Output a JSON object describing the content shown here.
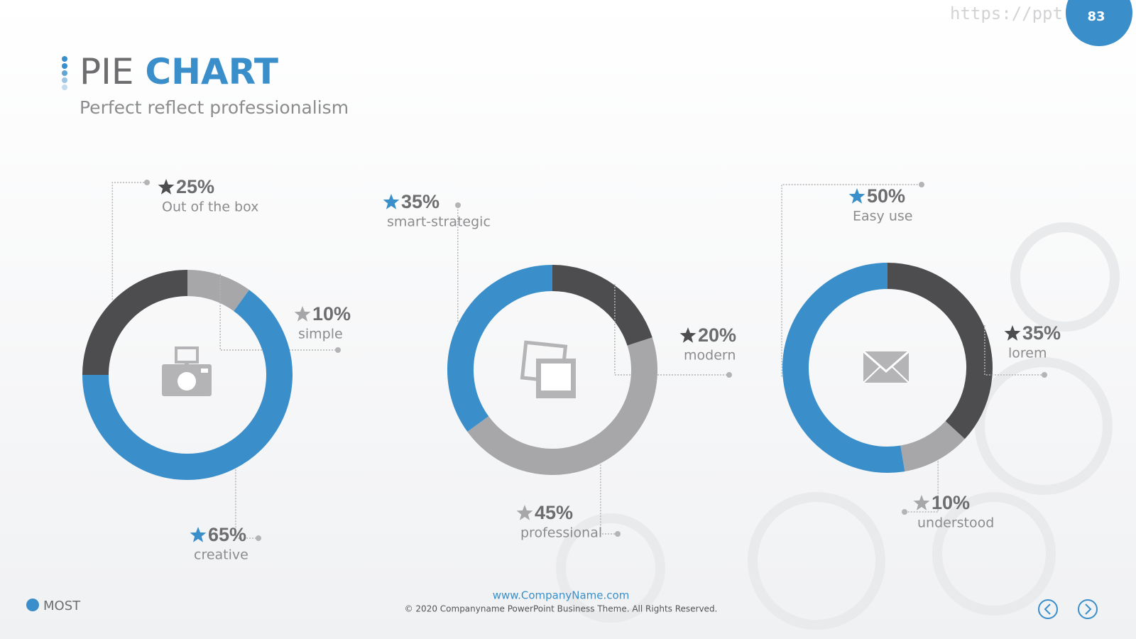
{
  "header": {
    "title_light": "PIE",
    "title_bold": "CHART",
    "subtitle": "Perfect reflect professionalism",
    "watermark": "https://ppt.pkl",
    "page_number": "83"
  },
  "chart_data": [
    {
      "type": "pie",
      "donut": true,
      "categories": [
        "simple",
        "creative",
        "Out of the box"
      ],
      "values": [
        10,
        65,
        25
      ],
      "value_labels": [
        "10%",
        "65%",
        "25%"
      ],
      "colors": [
        "#a7a7a9",
        "#3a8fcb",
        "#4d4d50"
      ]
    },
    {
      "type": "pie",
      "donut": true,
      "categories": [
        "modern",
        "professional",
        "smart-strategic"
      ],
      "values": [
        20,
        45,
        35
      ],
      "value_labels": [
        "20%",
        "45%",
        "35%"
      ],
      "colors": [
        "#4d4d50",
        "#a7a7a9",
        "#3a8fcb"
      ]
    },
    {
      "type": "pie",
      "donut": true,
      "categories": [
        "lorem",
        "understood",
        "Easy use"
      ],
      "values": [
        35,
        10,
        50
      ],
      "value_labels": [
        "35%",
        "10%",
        "50%"
      ],
      "colors": [
        "#4d4d50",
        "#a7a7a9",
        "#3a8fcb"
      ]
    }
  ],
  "footer": {
    "website": "www.CompanyName.com",
    "copyright": "© 2020 Companyname PowerPoint Business Theme. All Rights Reserved.",
    "logo": "MOST"
  }
}
